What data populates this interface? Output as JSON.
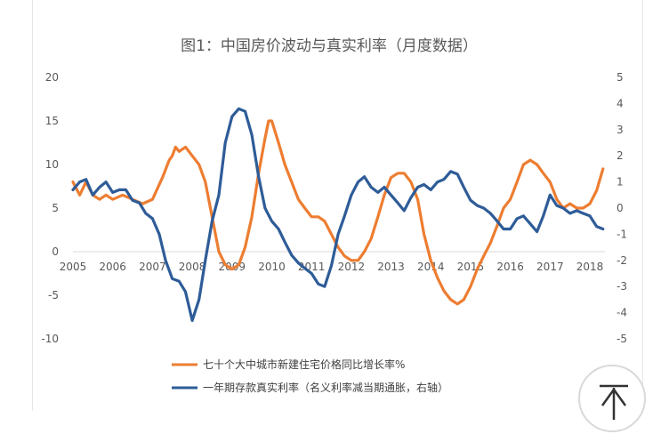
{
  "chart_data": {
    "type": "line",
    "title": "图1：中国房价波动与真实利率（月度数据）",
    "x_tick_labels": [
      "2005",
      "2006",
      "2007",
      "2008",
      "2009",
      "2010",
      "2011",
      "2012",
      "2013",
      "2014",
      "2015",
      "2016",
      "2017",
      "2018"
    ],
    "xlim": [
      2005.0,
      2018.38
    ],
    "left_axis": {
      "ylim": [
        -10,
        20
      ],
      "ticks": [
        "-10",
        "-5",
        "0",
        "5",
        "10",
        "15",
        "20"
      ]
    },
    "right_axis": {
      "ylim": [
        -5,
        5
      ],
      "ticks": [
        "-5",
        "-4",
        "-3",
        "-2",
        "-1",
        "0",
        "1",
        "2",
        "3",
        "4",
        "5"
      ]
    },
    "grid": false,
    "legend_position": "bottom",
    "series": [
      {
        "name": "七十个大中城市新建住宅价格同比增长率%",
        "axis": "left",
        "color": "#ed7d31",
        "x": [
          2005.0,
          2005.17,
          2005.33,
          2005.5,
          2005.67,
          2005.83,
          2006.0,
          2006.25,
          2006.5,
          2006.75,
          2007.0,
          2007.25,
          2007.42,
          2007.5,
          2007.58,
          2007.67,
          2007.83,
          2008.0,
          2008.17,
          2008.33,
          2008.5,
          2008.67,
          2008.83,
          2009.0,
          2009.17,
          2009.33,
          2009.5,
          2009.67,
          2009.83,
          2009.92,
          2010.0,
          2010.17,
          2010.33,
          2010.5,
          2010.67,
          2010.83,
          2011.0,
          2011.17,
          2011.33,
          2011.5,
          2011.67,
          2011.83,
          2012.0,
          2012.17,
          2012.33,
          2012.5,
          2012.67,
          2012.83,
          2013.0,
          2013.17,
          2013.33,
          2013.5,
          2013.67,
          2013.83,
          2014.0,
          2014.17,
          2014.33,
          2014.5,
          2014.67,
          2014.83,
          2015.0,
          2015.17,
          2015.33,
          2015.5,
          2015.67,
          2015.83,
          2016.0,
          2016.17,
          2016.33,
          2016.5,
          2016.67,
          2016.83,
          2017.0,
          2017.17,
          2017.33,
          2017.5,
          2017.67,
          2017.83,
          2018.0,
          2018.17,
          2018.33
        ],
        "values": [
          8.0,
          6.5,
          8.0,
          6.5,
          6.0,
          6.5,
          6.0,
          6.5,
          6.0,
          5.5,
          6.0,
          8.5,
          10.5,
          11.0,
          12.0,
          11.5,
          12.0,
          11.0,
          10.0,
          8.0,
          4.0,
          0.0,
          -1.5,
          -2.0,
          -1.5,
          0.5,
          4.0,
          9.0,
          13.0,
          15.0,
          15.0,
          12.5,
          10.0,
          8.0,
          6.0,
          5.0,
          4.0,
          4.0,
          3.5,
          2.0,
          0.5,
          -0.5,
          -1.0,
          -1.0,
          0.0,
          1.5,
          4.0,
          6.5,
          8.5,
          9.0,
          9.0,
          8.0,
          6.0,
          2.0,
          -1.0,
          -3.0,
          -4.5,
          -5.5,
          -6.0,
          -5.5,
          -4.0,
          -2.0,
          -0.5,
          1.0,
          3.0,
          5.0,
          6.0,
          8.0,
          10.0,
          10.5,
          10.0,
          9.0,
          8.0,
          6.0,
          5.0,
          5.5,
          5.0,
          5.0,
          5.5,
          7.0,
          9.5
        ]
      },
      {
        "name": "一年期存款真实利率（名义利率减当期通胀，右轴）",
        "axis": "right",
        "color": "#2e5c98",
        "x": [
          2005.0,
          2005.17,
          2005.33,
          2005.5,
          2005.67,
          2005.83,
          2006.0,
          2006.17,
          2006.33,
          2006.5,
          2006.67,
          2006.83,
          2007.0,
          2007.17,
          2007.33,
          2007.5,
          2007.67,
          2007.83,
          2008.0,
          2008.17,
          2008.33,
          2008.5,
          2008.67,
          2008.83,
          2009.0,
          2009.17,
          2009.33,
          2009.5,
          2009.67,
          2009.83,
          2010.0,
          2010.17,
          2010.33,
          2010.5,
          2010.67,
          2010.83,
          2011.0,
          2011.17,
          2011.33,
          2011.5,
          2011.67,
          2011.83,
          2012.0,
          2012.17,
          2012.33,
          2012.5,
          2012.67,
          2012.83,
          2013.0,
          2013.17,
          2013.33,
          2013.5,
          2013.67,
          2013.83,
          2014.0,
          2014.17,
          2014.33,
          2014.5,
          2014.67,
          2014.83,
          2015.0,
          2015.17,
          2015.33,
          2015.5,
          2015.67,
          2015.83,
          2016.0,
          2016.17,
          2016.33,
          2016.5,
          2016.67,
          2016.83,
          2017.0,
          2017.17,
          2017.33,
          2017.5,
          2017.67,
          2017.83,
          2018.0,
          2018.17,
          2018.33
        ],
        "values": [
          0.7,
          1.0,
          1.1,
          0.5,
          0.8,
          1.0,
          0.6,
          0.7,
          0.7,
          0.3,
          0.2,
          -0.2,
          -0.4,
          -1.0,
          -2.0,
          -2.7,
          -2.8,
          -3.2,
          -4.3,
          -3.5,
          -2.0,
          -0.5,
          0.5,
          2.5,
          3.5,
          3.8,
          3.7,
          2.8,
          1.2,
          0.0,
          -0.5,
          -0.8,
          -1.3,
          -1.8,
          -2.1,
          -2.3,
          -2.5,
          -2.9,
          -3.0,
          -2.2,
          -1.0,
          -0.3,
          0.5,
          1.0,
          1.2,
          0.8,
          0.6,
          0.8,
          0.5,
          0.2,
          -0.1,
          0.4,
          0.8,
          0.9,
          0.7,
          1.0,
          1.1,
          1.4,
          1.3,
          0.8,
          0.3,
          0.1,
          0.0,
          -0.2,
          -0.5,
          -0.8,
          -0.8,
          -0.4,
          -0.3,
          -0.6,
          -0.9,
          -0.3,
          0.5,
          0.1,
          0.0,
          -0.2,
          -0.1,
          -0.2,
          -0.3,
          -0.7,
          -0.8
        ]
      }
    ]
  }
}
